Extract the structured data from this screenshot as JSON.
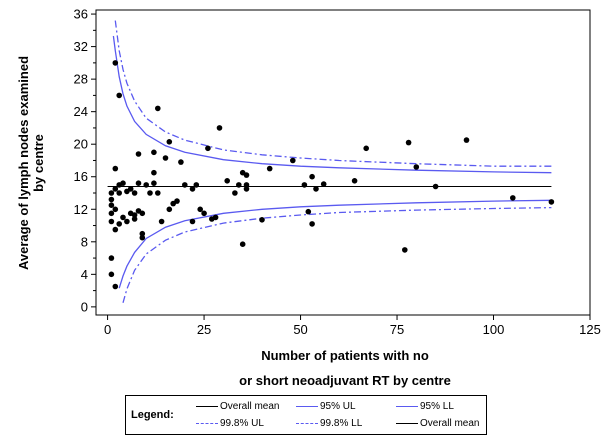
{
  "colors": {
    "mean_line": "#000000",
    "limit_95": "#5a5af0",
    "limit_998": "#5a5af0",
    "points": "#000000"
  },
  "chart_data": {
    "type": "scatter",
    "subtype": "funnel plot",
    "title": "",
    "xlabel_lines": [
      "Number of patients with no",
      "or short neoadjuvant RT by centre"
    ],
    "ylabel_lines": [
      "Average of lymph nodes examined",
      "by centre"
    ],
    "xlim": [
      -3,
      125
    ],
    "ylim": [
      -1,
      36.5
    ],
    "xticks": [
      0,
      25,
      50,
      75,
      100,
      125
    ],
    "yticks": [
      0,
      4,
      8,
      12,
      16,
      20,
      24,
      28,
      32,
      36
    ],
    "overall_mean": 14.8,
    "limits": {
      "95_UL": [
        [
          1.5,
          33.3
        ],
        [
          2,
          31.5
        ],
        [
          3,
          28.3
        ],
        [
          4,
          26.2
        ],
        [
          5,
          24.7
        ],
        [
          7,
          22.8
        ],
        [
          10,
          21.2
        ],
        [
          15,
          19.8
        ],
        [
          20,
          19.0
        ],
        [
          30,
          18.1
        ],
        [
          40,
          17.6
        ],
        [
          50,
          17.3
        ],
        [
          60,
          17.1
        ],
        [
          80,
          16.8
        ],
        [
          100,
          16.6
        ],
        [
          115,
          16.5
        ]
      ],
      "95_LL": [
        [
          3,
          2.3
        ],
        [
          4,
          3.8
        ],
        [
          5,
          5.0
        ],
        [
          7,
          6.7
        ],
        [
          10,
          8.4
        ],
        [
          15,
          9.8
        ],
        [
          20,
          10.6
        ],
        [
          30,
          11.5
        ],
        [
          40,
          12.0
        ],
        [
          50,
          12.3
        ],
        [
          60,
          12.5
        ],
        [
          80,
          12.8
        ],
        [
          100,
          13.0
        ],
        [
          115,
          13.1
        ]
      ],
      "99.8_UL": [
        [
          2,
          35.2
        ],
        [
          3,
          31.5
        ],
        [
          4,
          29.2
        ],
        [
          5,
          27.5
        ],
        [
          7,
          25.3
        ],
        [
          10,
          23.2
        ],
        [
          15,
          21.5
        ],
        [
          20,
          20.5
        ],
        [
          30,
          19.3
        ],
        [
          40,
          18.7
        ],
        [
          50,
          18.3
        ],
        [
          60,
          18.0
        ],
        [
          80,
          17.6
        ],
        [
          100,
          17.3
        ],
        [
          115,
          17.3
        ]
      ],
      "99.8_LL": [
        [
          4,
          0.5
        ],
        [
          5,
          2.2
        ],
        [
          7,
          4.5
        ],
        [
          10,
          6.5
        ],
        [
          15,
          8.2
        ],
        [
          20,
          9.2
        ],
        [
          30,
          10.3
        ],
        [
          40,
          10.9
        ],
        [
          50,
          11.3
        ],
        [
          60,
          11.6
        ],
        [
          80,
          11.9
        ],
        [
          100,
          12.1
        ],
        [
          115,
          12.2
        ]
      ]
    },
    "points": [
      [
        1,
        4.0
      ],
      [
        1,
        6.0
      ],
      [
        1,
        10.5
      ],
      [
        1,
        11.5
      ],
      [
        1,
        12.5
      ],
      [
        1,
        13.2
      ],
      [
        1,
        14.0
      ],
      [
        2,
        2.5
      ],
      [
        2,
        9.5
      ],
      [
        2,
        12.0
      ],
      [
        2,
        14.5
      ],
      [
        2,
        17.0
      ],
      [
        2,
        30.0
      ],
      [
        3,
        10.2
      ],
      [
        3,
        14.0
      ],
      [
        3,
        15.0
      ],
      [
        3,
        26.0
      ],
      [
        4,
        11.0
      ],
      [
        4,
        15.2
      ],
      [
        5,
        10.5
      ],
      [
        5,
        14.2
      ],
      [
        6,
        11.5
      ],
      [
        6,
        14.5
      ],
      [
        7,
        10.8
      ],
      [
        7,
        11.3
      ],
      [
        7,
        14.0
      ],
      [
        8,
        11.8
      ],
      [
        8,
        15.2
      ],
      [
        8,
        18.8
      ],
      [
        9,
        8.5
      ],
      [
        9,
        9.0
      ],
      [
        9,
        11.5
      ],
      [
        10,
        15.0
      ],
      [
        11,
        14.0
      ],
      [
        12,
        15.2
      ],
      [
        12,
        16.5
      ],
      [
        12,
        19.0
      ],
      [
        13,
        24.4
      ],
      [
        13,
        14.0
      ],
      [
        14,
        10.5
      ],
      [
        15,
        18.3
      ],
      [
        16,
        12.0
      ],
      [
        16,
        20.3
      ],
      [
        17,
        12.7
      ],
      [
        18,
        13.0
      ],
      [
        19,
        17.8
      ],
      [
        20,
        15.0
      ],
      [
        22,
        10.5
      ],
      [
        22,
        14.5
      ],
      [
        23,
        15.0
      ],
      [
        24,
        12.0
      ],
      [
        25,
        11.5
      ],
      [
        26,
        19.5
      ],
      [
        27,
        10.8
      ],
      [
        28,
        11.0
      ],
      [
        29,
        22.0
      ],
      [
        31,
        15.5
      ],
      [
        33,
        14.0
      ],
      [
        34,
        15.0
      ],
      [
        35,
        16.5
      ],
      [
        35,
        7.7
      ],
      [
        36,
        16.2
      ],
      [
        36,
        15.0
      ],
      [
        36,
        14.5
      ],
      [
        40,
        10.7
      ],
      [
        42,
        17.0
      ],
      [
        48,
        18.0
      ],
      [
        51,
        15.0
      ],
      [
        52,
        11.7
      ],
      [
        53,
        16.0
      ],
      [
        53,
        10.2
      ],
      [
        54,
        14.5
      ],
      [
        56,
        15.1
      ],
      [
        64,
        15.5
      ],
      [
        67,
        19.5
      ],
      [
        77,
        7.0
      ],
      [
        78,
        20.2
      ],
      [
        80,
        17.2
      ],
      [
        85,
        14.8
      ],
      [
        93,
        20.5
      ],
      [
        105,
        13.4
      ],
      [
        115,
        12.9
      ]
    ],
    "legend": {
      "title": "Legend:",
      "entries": [
        "Overall mean",
        "95% UL",
        "95% LL",
        "99.8% UL",
        "99.8% LL",
        "Overall mean"
      ],
      "placement": "bottom"
    },
    "grid": false
  }
}
